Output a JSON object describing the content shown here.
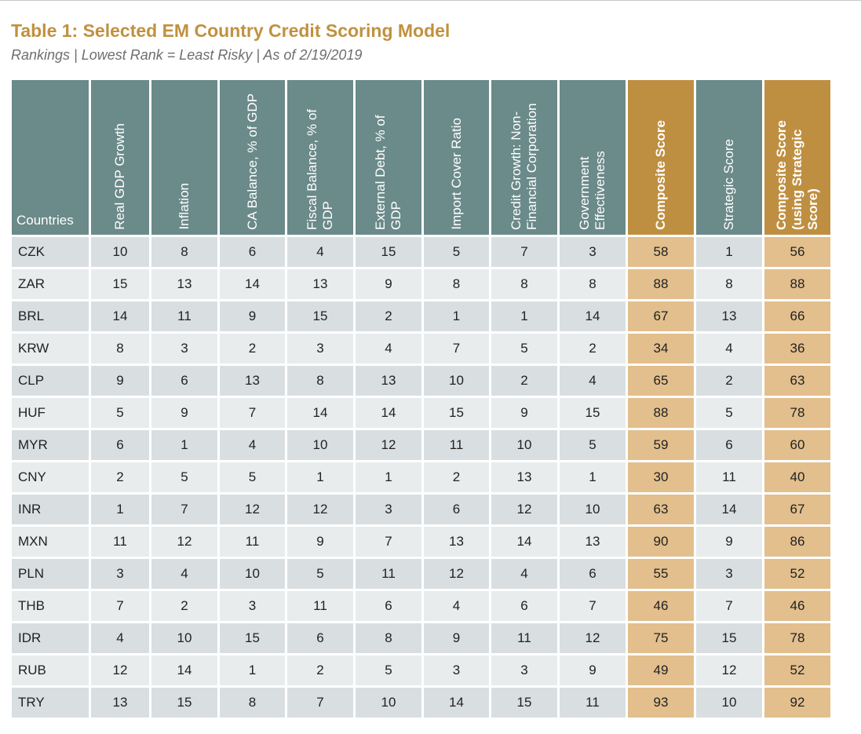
{
  "title": "Table 1: Selected EM Country Credit Scoring Model",
  "subtitle": "Rankings | Lowest Rank = Least Risky | As of 2/19/2019",
  "colors": {
    "header": "#6b8a8a",
    "accent_header": "#bf8f41",
    "accent_cell": "#e2bf8d",
    "title": "#c0913f"
  },
  "table": {
    "corner_header": "Countries",
    "headers": [
      "Real GDP Growth",
      "Inflation",
      "CA Balance, % of GDP",
      "Fiscal Balance, % of GDP",
      "External Debt, % of GDP",
      "Import Cover Ratio",
      "Credit Growth: Non-Financial Corporation",
      "Government Effectiveness",
      "Composite Score",
      "Strategic Score",
      "Composite Score (using Strategic Score)"
    ],
    "rows": [
      {
        "country": "CZK",
        "values": [
          10,
          8,
          6,
          4,
          15,
          5,
          7,
          3,
          58,
          1,
          56
        ]
      },
      {
        "country": "ZAR",
        "values": [
          15,
          13,
          14,
          13,
          9,
          8,
          8,
          8,
          88,
          8,
          88
        ]
      },
      {
        "country": "BRL",
        "values": [
          14,
          11,
          9,
          15,
          2,
          1,
          1,
          14,
          67,
          13,
          66
        ]
      },
      {
        "country": "KRW",
        "values": [
          8,
          3,
          2,
          3,
          4,
          7,
          5,
          2,
          34,
          4,
          36
        ]
      },
      {
        "country": "CLP",
        "values": [
          9,
          6,
          13,
          8,
          13,
          10,
          2,
          4,
          65,
          2,
          63
        ]
      },
      {
        "country": "HUF",
        "values": [
          5,
          9,
          7,
          14,
          14,
          15,
          9,
          15,
          88,
          5,
          78
        ]
      },
      {
        "country": "MYR",
        "values": [
          6,
          1,
          4,
          10,
          12,
          11,
          10,
          5,
          59,
          6,
          60
        ]
      },
      {
        "country": "CNY",
        "values": [
          2,
          5,
          5,
          1,
          1,
          2,
          13,
          1,
          30,
          11,
          40
        ]
      },
      {
        "country": "INR",
        "values": [
          1,
          7,
          12,
          12,
          3,
          6,
          12,
          10,
          63,
          14,
          67
        ]
      },
      {
        "country": "MXN",
        "values": [
          11,
          12,
          11,
          9,
          7,
          13,
          14,
          13,
          90,
          9,
          86
        ]
      },
      {
        "country": "PLN",
        "values": [
          3,
          4,
          10,
          5,
          11,
          12,
          4,
          6,
          55,
          3,
          52
        ]
      },
      {
        "country": "THB",
        "values": [
          7,
          2,
          3,
          11,
          6,
          4,
          6,
          7,
          46,
          7,
          46
        ]
      },
      {
        "country": "IDR",
        "values": [
          4,
          10,
          15,
          6,
          8,
          9,
          11,
          12,
          75,
          15,
          78
        ]
      },
      {
        "country": "RUB",
        "values": [
          12,
          14,
          1,
          2,
          5,
          3,
          3,
          9,
          49,
          12,
          52
        ]
      },
      {
        "country": "TRY",
        "values": [
          13,
          15,
          8,
          7,
          10,
          14,
          15,
          11,
          93,
          10,
          92
        ]
      }
    ]
  }
}
